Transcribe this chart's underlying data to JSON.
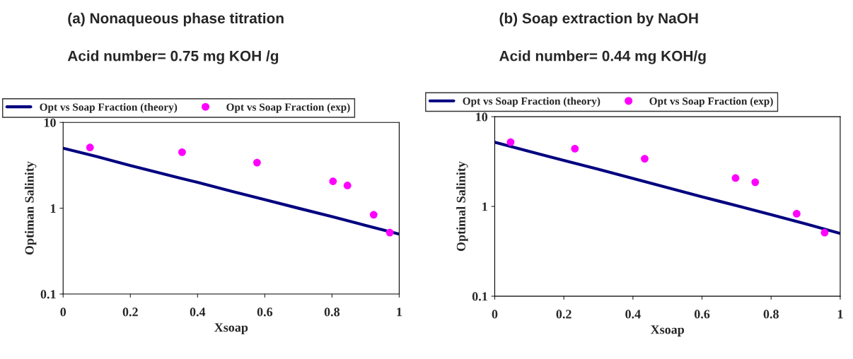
{
  "chart_data": [
    {
      "type": "line",
      "title": "(a) Nonaqueous phase titration",
      "subtitle": "Acid number= 0.75 mg KOH /g",
      "xlabel": "Xsoap",
      "ylabel": "Optiman Salinity",
      "log": "y",
      "xlim": [
        0,
        1
      ],
      "ylim": [
        0.1,
        10
      ],
      "xticks": [
        0,
        0.2,
        0.4,
        0.6,
        0.8,
        1
      ],
      "yticks": [
        0.1,
        1,
        10
      ],
      "grid": false,
      "legend": "top",
      "series": [
        {
          "name": "Opt vs Soap Fraction (theory)",
          "color": "#000080",
          "marker": "none",
          "x": [
            0,
            0.1,
            0.2,
            0.3,
            0.4,
            0.5,
            0.6,
            0.7,
            0.8,
            0.9,
            1
          ],
          "values": [
            5.0,
            4.0,
            3.15,
            2.5,
            2.0,
            1.58,
            1.26,
            1.0,
            0.8,
            0.63,
            0.5
          ]
        },
        {
          "name": "Opt vs Soap Fraction (exp)",
          "type": "scatter",
          "color": "#ff00ff",
          "marker": "circle",
          "x": [
            0.08,
            0.354,
            0.577,
            0.803,
            0.846,
            0.924,
            0.972
          ],
          "values": [
            5.1,
            4.5,
            3.4,
            2.06,
            1.84,
            0.84,
            0.52
          ]
        }
      ]
    },
    {
      "type": "line",
      "title": "(b) Soap extraction by NaOH",
      "subtitle": "Acid number= 0.44 mg KOH/g",
      "xlabel": "Xsoap",
      "ylabel": "Optimal Salinity",
      "log": "y",
      "xlim": [
        0,
        1
      ],
      "ylim": [
        0.1,
        10
      ],
      "xticks": [
        0,
        0.2,
        0.4,
        0.6,
        0.8,
        1
      ],
      "yticks": [
        0.1,
        1,
        10
      ],
      "grid": false,
      "legend": "top",
      "series": [
        {
          "name": "Opt vs Soap Fraction (theory)",
          "color": "#000080",
          "marker": "none",
          "x": [
            0,
            0.1,
            0.2,
            0.3,
            0.4,
            0.5,
            0.6,
            0.7,
            0.8,
            0.9,
            1
          ],
          "values": [
            5.2,
            4.1,
            3.25,
            2.6,
            2.05,
            1.62,
            1.28,
            1.02,
            0.81,
            0.64,
            0.5
          ]
        },
        {
          "name": "Opt vs Soap Fraction (exp)",
          "type": "scatter",
          "color": "#ff00ff",
          "marker": "circle",
          "x": [
            0.046,
            0.232,
            0.434,
            0.697,
            0.754,
            0.874,
            0.955
          ],
          "values": [
            5.2,
            4.4,
            3.4,
            2.07,
            1.86,
            0.83,
            0.51
          ]
        }
      ]
    }
  ]
}
